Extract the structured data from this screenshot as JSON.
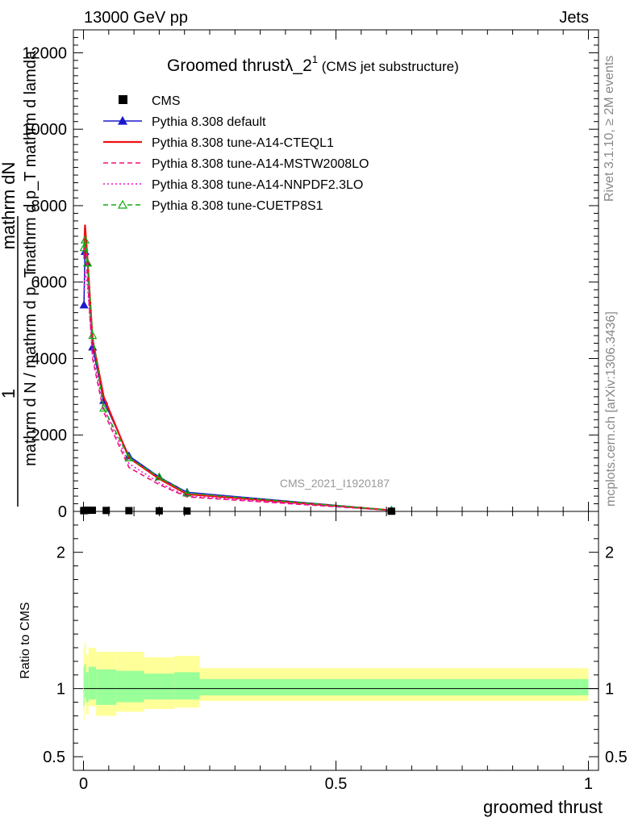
{
  "header": {
    "left": "13000 GeV pp",
    "right": "Jets"
  },
  "side_texts": {
    "rivet": "Rivet 3.1.10, ≥ 2M events",
    "mcplots": "mcplots.cern.ch [arXiv:1306.3436]"
  },
  "chart_data": {
    "type": "line",
    "title_main": "Groomed thrustλ_2",
    "title_sup": "1",
    "title_sub": " (CMS jet substructure)",
    "watermark": "CMS_2021_I1920187",
    "xlabel": "groomed thrust",
    "ylabel_top": "1",
    "ylabel_mid": "mathrm dN",
    "ylabel_num": "mathrm d N / mathrm d p_T",
    "ylabel_den": "mathrm d p_T mathrm d lamda",
    "ratio_ylabel": "Ratio to CMS",
    "xlim": [
      -0.02,
      1.02
    ],
    "ylim_main": [
      0,
      12600
    ],
    "ratio_ylim": [
      0.4,
      2.3
    ],
    "x_ticks": [
      "0",
      "0.5",
      "1"
    ],
    "y_ticks": [
      "0",
      "2000",
      "4000",
      "6000",
      "8000",
      "10000",
      "12000"
    ],
    "ratio_ticks": [
      "0.5",
      "1",
      "2"
    ],
    "legend_position": "top-left",
    "cms_points": {
      "x": [
        0.0005,
        0.0025,
        0.0075,
        0.0175,
        0.045,
        0.09,
        0.15,
        0.205,
        0.61
      ],
      "y": [
        20,
        25,
        30,
        30,
        25,
        20,
        15,
        10,
        5
      ]
    },
    "series": [
      {
        "name": "Pythia 8.308 default",
        "color": "#1a1acc",
        "dash": "",
        "marker": "triangle-filled",
        "x": [
          0.001,
          0.003,
          0.008,
          0.018,
          0.04,
          0.09,
          0.15,
          0.205,
          0.61
        ],
        "y": [
          5400,
          6800,
          6500,
          4300,
          2900,
          1450,
          900,
          500,
          30
        ]
      },
      {
        "name": "Pythia 8.308 tune-A14-CTEQL1",
        "color": "#ee1111",
        "dash": "",
        "marker": "",
        "x": [
          0.001,
          0.003,
          0.008,
          0.018,
          0.04,
          0.09,
          0.15,
          0.205,
          0.61
        ],
        "y": [
          6700,
          7500,
          6600,
          4500,
          3000,
          1400,
          850,
          450,
          30
        ]
      },
      {
        "name": "Pythia 8.308 tune-A14-MSTW2008LO",
        "color": "#ee1177",
        "dash": "6,4",
        "marker": "",
        "x": [
          0.001,
          0.003,
          0.008,
          0.018,
          0.04,
          0.09,
          0.15,
          0.205,
          0.61
        ],
        "y": [
          6600,
          7100,
          6100,
          4000,
          2600,
          1150,
          700,
          380,
          25
        ]
      },
      {
        "name": "Pythia 8.308 tune-A14-NNPDF2.3LO",
        "color": "#ee11cc",
        "dash": "2,3",
        "marker": "",
        "x": [
          0.001,
          0.003,
          0.008,
          0.018,
          0.04,
          0.09,
          0.15,
          0.205,
          0.61
        ],
        "y": [
          5800,
          6300,
          5900,
          4100,
          2700,
          1250,
          750,
          400,
          25
        ]
      },
      {
        "name": "Pythia 8.308 tune-CUETP8S1",
        "color": "#11aa11",
        "dash": "6,4",
        "marker": "triangle-open",
        "x": [
          0.001,
          0.003,
          0.008,
          0.018,
          0.04,
          0.09,
          0.15,
          0.205,
          0.61
        ],
        "y": [
          6900,
          7100,
          6500,
          4600,
          2700,
          1400,
          900,
          480,
          30
        ]
      }
    ],
    "ratio_bands": {
      "edges": [
        0.0,
        0.002,
        0.005,
        0.01,
        0.025,
        0.065,
        0.12,
        0.18,
        0.23,
        1.0
      ],
      "yellow_lo": [
        0.77,
        0.88,
        0.81,
        0.87,
        0.8,
        0.83,
        0.85,
        0.86,
        0.91
      ],
      "yellow_hi": [
        1.3,
        1.34,
        1.25,
        1.3,
        1.27,
        1.27,
        1.23,
        1.24,
        1.15
      ],
      "green_lo": [
        0.87,
        0.93,
        0.9,
        0.92,
        0.88,
        0.9,
        0.92,
        0.92,
        0.95
      ],
      "green_hi": [
        1.16,
        1.18,
        1.12,
        1.16,
        1.14,
        1.13,
        1.11,
        1.12,
        1.07
      ],
      "yellow_color": "#ffff99",
      "green_color": "#99ff99"
    }
  }
}
